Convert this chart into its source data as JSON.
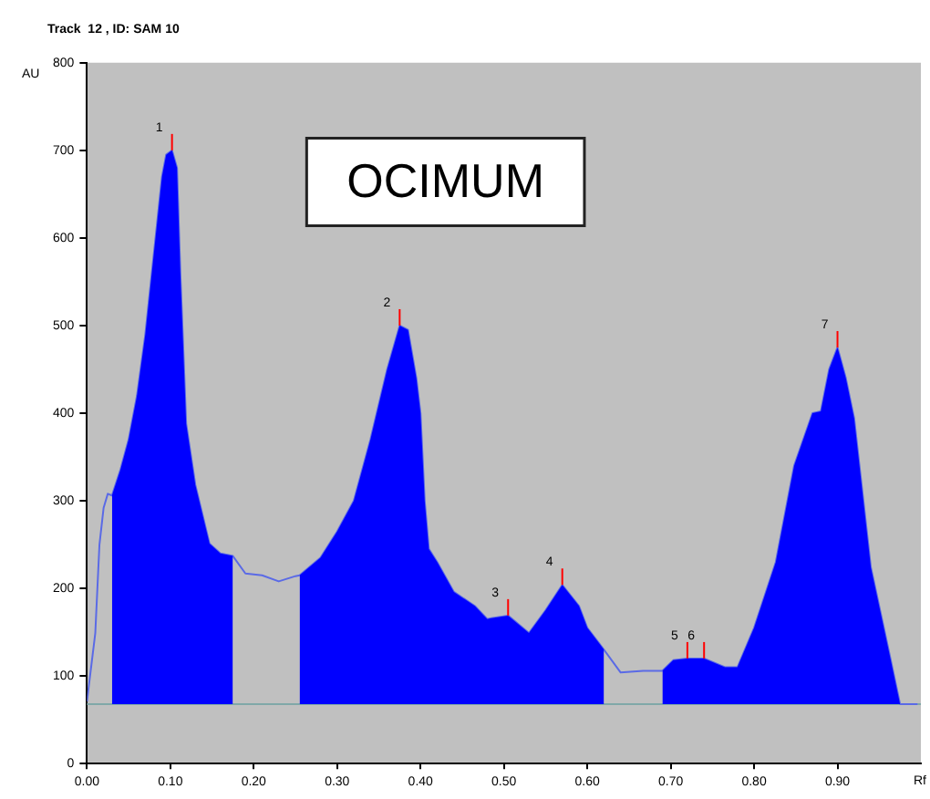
{
  "chart_data": {
    "type": "area",
    "title": "Track  12 , ID: SAM 10",
    "xlabel": "Rf",
    "ylabel": "AU",
    "x": [
      0,
      0.01,
      0.015,
      0.02,
      0.025,
      0.03,
      0.04,
      0.05,
      0.06,
      0.07,
      0.08,
      0.09,
      0.095,
      0.102,
      0.108,
      0.112,
      0.119,
      0.13,
      0.147,
      0.16,
      0.175,
      0.19,
      0.21,
      0.23,
      0.25,
      0.255,
      0.28,
      0.3,
      0.32,
      0.34,
      0.36,
      0.375,
      0.385,
      0.395,
      0.4,
      0.405,
      0.41,
      0.42,
      0.44,
      0.465,
      0.48,
      0.485,
      0.505,
      0.53,
      0.55,
      0.57,
      0.59,
      0.6,
      0.62,
      0.64,
      0.667,
      0.69,
      0.703,
      0.72,
      0.74,
      0.765,
      0.78,
      0.8,
      0.826,
      0.848,
      0.87,
      0.88,
      0.89,
      0.9,
      0.91,
      0.92,
      0.94,
      0.963,
      0.975,
      0.996
    ],
    "series": [
      {
        "type": "area",
        "color": "#0000ff",
        "values": [
          null,
          null,
          null,
          null,
          null,
          306,
          335,
          370,
          420,
          490,
          580,
          670,
          695,
          700,
          680,
          560,
          388,
          318,
          251,
          240,
          237,
          null,
          null,
          null,
          null,
          215,
          235,
          265,
          300,
          370,
          450,
          500,
          495,
          440,
          400,
          300,
          245,
          230,
          196,
          180,
          165,
          166,
          169,
          149,
          175,
          204,
          180,
          155,
          130,
          null,
          null,
          106,
          118,
          120,
          120,
          110,
          110,
          155,
          230,
          340,
          400,
          402,
          450,
          475,
          440,
          394,
          224,
          122,
          68,
          null
        ]
      },
      {
        "type": "line",
        "color": "#5a6ae6",
        "values": [
          71,
          149,
          250,
          292,
          308,
          306,
          335,
          370,
          420,
          490,
          580,
          670,
          695,
          700,
          680,
          560,
          388,
          318,
          251,
          240,
          237,
          217,
          215,
          208,
          214,
          215,
          235,
          265,
          300,
          370,
          450,
          500,
          495,
          440,
          400,
          300,
          245,
          230,
          196,
          180,
          165,
          166,
          169,
          149,
          175,
          204,
          180,
          155,
          130,
          104,
          106,
          106,
          118,
          120,
          120,
          110,
          110,
          155,
          230,
          340,
          400,
          402,
          450,
          475,
          440,
          394,
          224,
          122,
          68,
          68
        ]
      }
    ],
    "ref_lines": [
      {
        "axis": "y",
        "value": 68,
        "color": "#80a8a8"
      }
    ],
    "annotations": [
      {
        "text": "1",
        "x": 0.102,
        "y": 700
      },
      {
        "text": "2",
        "x": 0.375,
        "y": 500
      },
      {
        "text": "3",
        "x": 0.505,
        "y": 169
      },
      {
        "text": "4",
        "x": 0.57,
        "y": 204
      },
      {
        "text": "5",
        "x": 0.72,
        "y": 120
      },
      {
        "text": "6",
        "x": 0.74,
        "y": 120
      },
      {
        "text": "7",
        "x": 0.9,
        "y": 475
      },
      "OCIMUM"
    ],
    "xlim": [
      0,
      1.0
    ],
    "xticks": [
      {
        "value": 0,
        "label": "0.00"
      },
      {
        "value": 0.1,
        "label": "0.10"
      },
      {
        "value": 0.2,
        "label": "0.20"
      },
      {
        "value": 0.3,
        "label": "0.30"
      },
      {
        "value": 0.4,
        "label": "0.40"
      },
      {
        "value": 0.5,
        "label": "0.50"
      },
      {
        "value": 0.6,
        "label": "0.60"
      },
      {
        "value": 0.7,
        "label": "0.70"
      },
      {
        "value": 0.8,
        "label": "0.80"
      },
      {
        "value": 0.9,
        "label": "0.90"
      }
    ],
    "ylim": [
      0,
      800
    ],
    "yticks": [
      0,
      100,
      200,
      300,
      400,
      500,
      600,
      700,
      800
    ],
    "grid": false,
    "legend": false
  }
}
